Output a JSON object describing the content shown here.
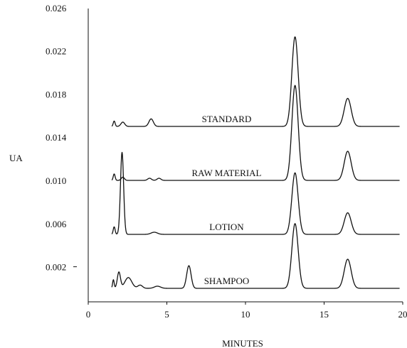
{
  "chart_data": {
    "type": "line",
    "title": "",
    "xlabel": "MINUTES",
    "ylabel": "UA",
    "xlim": [
      0,
      20
    ],
    "ylim": [
      -0.0005,
      0.0275
    ],
    "xticks": [
      "0",
      "5",
      "10",
      "15",
      "20"
    ],
    "yticks": [
      "0.026",
      "0.022",
      "0.018",
      "0.014",
      "0.010",
      "0.006",
      "0.002"
    ],
    "ytick_values": [
      0.026,
      0.022,
      0.018,
      0.014,
      0.01,
      0.006,
      0.002
    ],
    "grid": false,
    "series": [
      {
        "name": "STANDARD",
        "baseline": 0.015,
        "label_x": 8.8,
        "peaks": [
          {
            "x": 1.65,
            "height": 0.0005,
            "width": 0.06
          },
          {
            "x": 2.2,
            "height": 0.0004,
            "width": 0.12
          },
          {
            "x": 4.0,
            "height": 0.0007,
            "width": 0.14
          },
          {
            "x": 13.15,
            "height": 0.0083,
            "width": 0.2
          },
          {
            "x": 16.5,
            "height": 0.0026,
            "width": 0.22
          }
        ]
      },
      {
        "name": "RAW MATERIAL",
        "baseline": 0.01,
        "label_x": 8.8,
        "peaks": [
          {
            "x": 1.65,
            "height": 0.0006,
            "width": 0.06
          },
          {
            "x": 2.2,
            "height": 0.0003,
            "width": 0.1
          },
          {
            "x": 3.9,
            "height": 0.0002,
            "width": 0.12
          },
          {
            "x": 4.5,
            "height": 0.0002,
            "width": 0.12
          },
          {
            "x": 13.15,
            "height": 0.0088,
            "width": 0.2
          },
          {
            "x": 16.5,
            "height": 0.0027,
            "width": 0.22
          }
        ]
      },
      {
        "name": "LOTION",
        "baseline": 0.005,
        "label_x": 8.8,
        "peaks": [
          {
            "x": 1.65,
            "height": 0.0007,
            "width": 0.06
          },
          {
            "x": 2.15,
            "height": 0.0076,
            "width": 0.1
          },
          {
            "x": 4.2,
            "height": 0.0002,
            "width": 0.2
          },
          {
            "x": 13.15,
            "height": 0.0057,
            "width": 0.2
          },
          {
            "x": 16.5,
            "height": 0.002,
            "width": 0.22
          }
        ]
      },
      {
        "name": "SHAMPOO",
        "baseline": 0.0,
        "label_x": 8.8,
        "peaks": [
          {
            "x": 1.6,
            "height": 0.0008,
            "width": 0.05
          },
          {
            "x": 1.95,
            "height": 0.0015,
            "width": 0.1
          },
          {
            "x": 2.55,
            "height": 0.001,
            "width": 0.22
          },
          {
            "x": 3.3,
            "height": 0.0003,
            "width": 0.15
          },
          {
            "x": 4.4,
            "height": 0.0002,
            "width": 0.2
          },
          {
            "x": 6.4,
            "height": 0.0021,
            "width": 0.14
          },
          {
            "x": 13.15,
            "height": 0.006,
            "width": 0.2
          },
          {
            "x": 16.5,
            "height": 0.0027,
            "width": 0.22
          }
        ]
      }
    ]
  }
}
